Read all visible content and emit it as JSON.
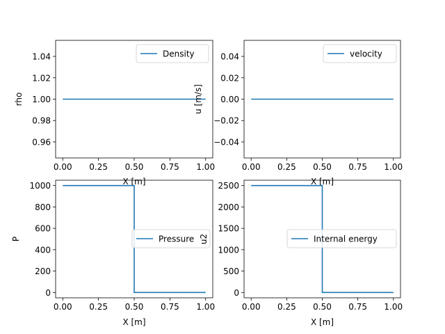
{
  "chart_data": [
    {
      "type": "line",
      "xlabel": "X [m]",
      "ylabel": "rho",
      "xlim": [
        -0.05,
        1.05
      ],
      "ylim": [
        0.945,
        1.055
      ],
      "xticks": [
        0.0,
        0.25,
        0.5,
        0.75,
        1.0
      ],
      "xtick_labels": [
        "0.00",
        "0.25",
        "0.50",
        "0.75",
        "1.00"
      ],
      "yticks": [
        0.96,
        0.98,
        1.0,
        1.02,
        1.04
      ],
      "ytick_labels": [
        "0.96",
        "0.98",
        "1.00",
        "1.02",
        "1.04"
      ],
      "legend_position": "upper right",
      "series": [
        {
          "name": "Density",
          "color": "#1f77b4",
          "x": [
            0.0,
            1.0
          ],
          "y": [
            1.0,
            1.0
          ]
        }
      ]
    },
    {
      "type": "line",
      "xlabel": "X [m]",
      "ylabel": "u [m/s]",
      "xlim": [
        -0.05,
        1.05
      ],
      "ylim": [
        -0.055,
        0.055
      ],
      "xticks": [
        0.0,
        0.25,
        0.5,
        0.75,
        1.0
      ],
      "xtick_labels": [
        "0.00",
        "0.25",
        "0.50",
        "0.75",
        "1.00"
      ],
      "yticks": [
        -0.04,
        -0.02,
        0.0,
        0.02,
        0.04
      ],
      "ytick_labels": [
        "−0.04",
        "−0.02",
        "0.00",
        "0.02",
        "0.04"
      ],
      "legend_position": "upper right",
      "series": [
        {
          "name": "velocity",
          "color": "#1f77b4",
          "x": [
            0.0,
            1.0
          ],
          "y": [
            0.0,
            0.0
          ]
        }
      ]
    },
    {
      "type": "line",
      "xlabel": "X [m]",
      "ylabel": "P",
      "xlim": [
        -0.05,
        1.05
      ],
      "ylim": [
        -50,
        1050
      ],
      "xticks": [
        0.0,
        0.25,
        0.5,
        0.75,
        1.0
      ],
      "xtick_labels": [
        "0.00",
        "0.25",
        "0.50",
        "0.75",
        "1.00"
      ],
      "yticks": [
        0,
        200,
        400,
        600,
        800,
        1000
      ],
      "ytick_labels": [
        "0",
        "200",
        "400",
        "600",
        "800",
        "1000"
      ],
      "legend_position": "center right",
      "series": [
        {
          "name": "Pressure",
          "color": "#1f77b4",
          "x": [
            0.0,
            0.5,
            0.5,
            1.0
          ],
          "y": [
            1000,
            1000,
            0.01,
            0.01
          ]
        }
      ]
    },
    {
      "type": "line",
      "xlabel": "X [m]",
      "ylabel": "u2",
      "xlim": [
        -0.05,
        1.05
      ],
      "ylim": [
        -125,
        2625
      ],
      "xticks": [
        0.0,
        0.25,
        0.5,
        0.75,
        1.0
      ],
      "xtick_labels": [
        "0.00",
        "0.25",
        "0.50",
        "0.75",
        "1.00"
      ],
      "yticks": [
        0,
        500,
        1000,
        1500,
        2000,
        2500
      ],
      "ytick_labels": [
        "0",
        "500",
        "1000",
        "1500",
        "2000",
        "2500"
      ],
      "legend_position": "center right",
      "series": [
        {
          "name": "Internal energy",
          "color": "#1f77b4",
          "x": [
            0.0,
            0.5,
            0.5,
            1.0
          ],
          "y": [
            2500,
            2500,
            0.025,
            0.025
          ]
        }
      ]
    }
  ]
}
